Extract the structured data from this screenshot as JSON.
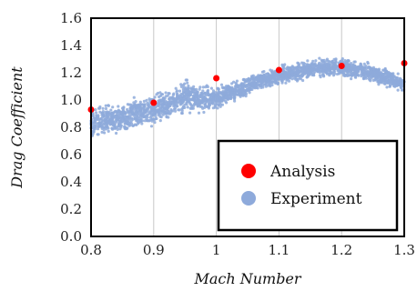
{
  "chart_data": {
    "type": "scatter",
    "xlabel": "Mach Number",
    "ylabel": "Drag Coefficient",
    "xlim": [
      0.8,
      1.3
    ],
    "ylim": [
      0.0,
      1.6
    ],
    "x_ticks": [
      "0.8",
      "0.9",
      "1",
      "1.1",
      "1.2",
      "1.3"
    ],
    "y_ticks": [
      "0.0",
      "0.2",
      "0.4",
      "0.6",
      "0.8",
      "1.0",
      "1.2",
      "1.4",
      "1.6"
    ],
    "grid": "vertical",
    "legend_position": "bottom-right",
    "series": [
      {
        "name": "Analysis",
        "color": "#ff0000",
        "marker": "point",
        "x": [
          0.8,
          0.9,
          1.0,
          1.1,
          1.2,
          1.3
        ],
        "y": [
          0.93,
          0.98,
          1.16,
          1.22,
          1.25,
          1.27
        ]
      },
      {
        "name": "Experiment",
        "color": "#8eaadb",
        "marker": "dense-cloud",
        "x": [
          0.8,
          0.82,
          0.84,
          0.86,
          0.88,
          0.9,
          0.92,
          0.94,
          0.95,
          0.96,
          0.98,
          1.0,
          1.02,
          1.04,
          1.06,
          1.08,
          1.1,
          1.12,
          1.14,
          1.16,
          1.18,
          1.2,
          1.22,
          1.24,
          1.26,
          1.28,
          1.3
        ],
        "y_low": [
          0.7,
          0.72,
          0.74,
          0.75,
          0.78,
          0.79,
          0.82,
          0.85,
          0.88,
          0.87,
          0.89,
          0.92,
          0.95,
          1.0,
          1.04,
          1.08,
          1.1,
          1.12,
          1.13,
          1.15,
          1.15,
          1.15,
          1.14,
          1.12,
          1.1,
          1.08,
          1.05
        ],
        "y_high": [
          0.97,
          0.98,
          0.99,
          1.02,
          1.06,
          1.07,
          1.09,
          1.14,
          1.18,
          1.14,
          1.12,
          1.12,
          1.14,
          1.17,
          1.2,
          1.23,
          1.26,
          1.28,
          1.3,
          1.32,
          1.33,
          1.32,
          1.31,
          1.29,
          1.26,
          1.23,
          1.19
        ]
      }
    ]
  }
}
